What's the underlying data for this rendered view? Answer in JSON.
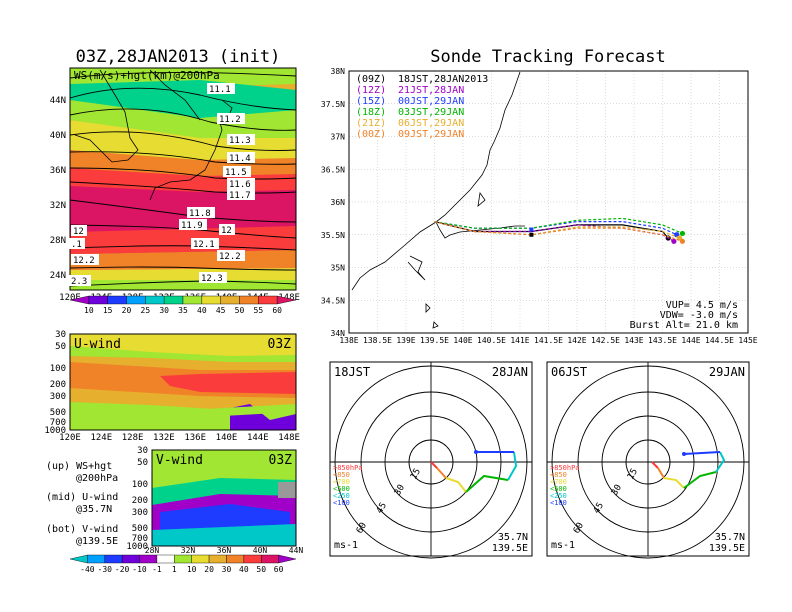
{
  "colors": {
    "fill_10": "#a000c8",
    "fill_15": "#6e00dc",
    "fill_20": "#1e3cff",
    "fill_25": "#00a0ff",
    "fill_30": "#00c8c8",
    "fill_35": "#00d28c",
    "fill_40": "#a0e632",
    "fill_45": "#e6dc32",
    "fill_50": "#e6af2d",
    "fill_55": "#f08228",
    "fill_60": "#fa3c3c",
    "fill_high": "#dc1464",
    "track_09JST": "#000000",
    "track_21JST": "#a000c8",
    "track_00JST": "#1e3cff",
    "track_03JST": "#00b400",
    "track_06JST": "#e6af2d",
    "track_09JST_29": "#f08228"
  },
  "map_panel": {
    "title": "03Z,28JAN2013 (init)",
    "inner_label": "WS(m/s)+hgt(km)@200hPa",
    "lat_ticks": [
      "44N",
      "40N",
      "36N",
      "32N",
      "28N",
      "24N"
    ],
    "lon_ticks": [
      "120E",
      "124E",
      "128E",
      "132E",
      "136E",
      "140E",
      "144E",
      "148E"
    ],
    "contour_labels": [
      "11.1",
      "11.2",
      "11.3",
      "11.4",
      "11.5",
      "11.6",
      "11.7",
      "11.8",
      "11.9",
      "12",
      "12",
      "12.1",
      "12.2",
      "12.2",
      "12.3",
      ".1",
      "2.3"
    ],
    "colorbar_labels": [
      "10",
      "15",
      "20",
      "25",
      "30",
      "35",
      "40",
      "45",
      "50",
      "55",
      "60"
    ]
  },
  "uwind_panel": {
    "label": "U-wind",
    "time": "03Z",
    "p_ticks": [
      "30",
      "50",
      "100",
      "200",
      "300",
      "500",
      "700",
      "1000"
    ],
    "lon_ticks": [
      "120E",
      "124E",
      "128E",
      "132E",
      "136E",
      "140E",
      "144E",
      "148E"
    ]
  },
  "vwind_panel": {
    "label": "V-wind",
    "time": "03Z",
    "p_ticks": [
      "30",
      "50",
      "100",
      "200",
      "300",
      "500",
      "700",
      "1000"
    ],
    "lat_ticks": [
      "28N",
      "32N",
      "36N",
      "40N",
      "44N"
    ],
    "colorbar_labels": [
      "-40",
      "-30",
      "-20",
      "-10",
      "-1",
      "1",
      "10",
      "20",
      "30",
      "40",
      "50",
      "60"
    ]
  },
  "legend_notes": {
    "up_1": "(up) WS+hgt",
    "up_2": "@200hPa",
    "mid_1": "(mid) U-wind",
    "mid_2": "@35.7N",
    "bot_1": "(bot) V-wind",
    "bot_2": "@139.5E"
  },
  "chart_data": {
    "type": "line",
    "title": "Sonde Tracking Forecast",
    "xlim": [
      138,
      145
    ],
    "ylim": [
      34,
      38
    ],
    "x_ticks": [
      "138E",
      "138.5E",
      "139E",
      "139.5E",
      "140E",
      "140.5E",
      "141E",
      "141.5E",
      "142E",
      "142.5E",
      "143E",
      "143.5E",
      "144E",
      "144.5E",
      "145E"
    ],
    "y_ticks": [
      "34N",
      "34.5N",
      "35N",
      "35.5N",
      "36N",
      "36.5N",
      "37N",
      "37.5N",
      "38N"
    ],
    "legend": [
      {
        "code": "(09Z)",
        "label": "18JST,28JAN2013",
        "color": "#000000"
      },
      {
        "code": "(12Z)",
        "label": "21JST,28JAN",
        "color": "#a000c8"
      },
      {
        "code": "(15Z)",
        "label": "00JST,29JAN",
        "color": "#1e3cff"
      },
      {
        "code": "(18Z)",
        "label": "03JST,29JAN",
        "color": "#00b400"
      },
      {
        "code": "(21Z)",
        "label": "06JST,29JAN",
        "color": "#e6af2d"
      },
      {
        "code": "(00Z)",
        "label": "09JST,29JAN",
        "color": "#f08228"
      }
    ],
    "series": [
      {
        "color": "#000000",
        "x": [
          139.5,
          140.2,
          141.2,
          142.0,
          142.8,
          143.5,
          143.6
        ],
        "y": [
          35.7,
          35.55,
          35.55,
          35.65,
          35.65,
          35.55,
          35.45
        ]
      },
      {
        "color": "#a000c8",
        "x": [
          139.5,
          140.2,
          141.2,
          142.0,
          142.8,
          143.5,
          143.7
        ],
        "y": [
          35.7,
          35.55,
          35.55,
          35.65,
          35.6,
          35.5,
          35.4
        ]
      },
      {
        "color": "#1e3cff",
        "x": [
          139.5,
          140.2,
          141.2,
          142.0,
          142.8,
          143.5,
          143.75
        ],
        "y": [
          35.7,
          35.6,
          35.6,
          35.7,
          35.7,
          35.6,
          35.5
        ]
      },
      {
        "color": "#00b400",
        "x": [
          139.5,
          140.2,
          141.2,
          142.0,
          142.8,
          143.5,
          143.85
        ],
        "y": [
          35.7,
          35.6,
          35.6,
          35.72,
          35.75,
          35.65,
          35.52
        ]
      },
      {
        "color": "#e6af2d",
        "x": [
          139.5,
          140.2,
          141.2,
          142.0,
          142.8,
          143.5,
          143.8
        ],
        "y": [
          35.7,
          35.55,
          35.5,
          35.62,
          35.62,
          35.55,
          35.45
        ]
      },
      {
        "color": "#f08228",
        "x": [
          139.5,
          140.2,
          141.2,
          142.0,
          142.8,
          143.5,
          143.85
        ],
        "y": [
          35.7,
          35.55,
          35.5,
          35.6,
          35.6,
          35.5,
          35.4
        ]
      }
    ],
    "annotations": {
      "vup": "VUP= 4.5 m/s",
      "vdw": "VDW= -3.0 m/s",
      "burst": "Burst Alt= 21.0 km"
    }
  },
  "hodographs": [
    {
      "time": "18JST",
      "date": "28JAN",
      "lat": "35.7N",
      "lon": "139.5E",
      "unit": "ms-1",
      "ring_labels": [
        "15",
        "30",
        "45",
        "60"
      ],
      "layers": [
        ">850hPa",
        "<850",
        "<700",
        "<500",
        "<250",
        "<100"
      ]
    },
    {
      "time": "06JST",
      "date": "29JAN",
      "lat": "35.7N",
      "lon": "139.5E",
      "unit": "ms-1",
      "ring_labels": [
        "15",
        "30",
        "45",
        "60"
      ],
      "layers": [
        ">850hPa",
        "<850",
        "<700",
        "<500",
        "<250",
        "<100"
      ]
    }
  ]
}
